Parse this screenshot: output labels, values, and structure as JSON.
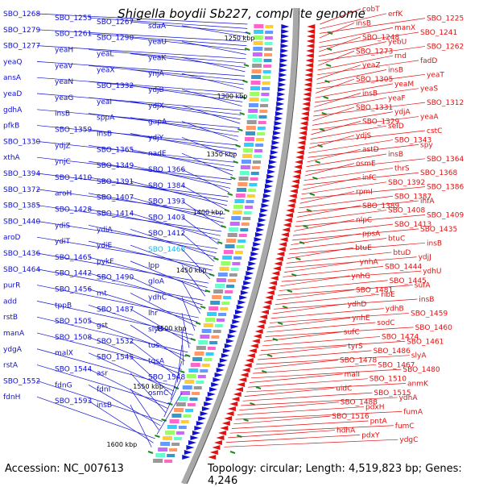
{
  "title": "Shigella boydii Sb227, complete genome",
  "footer": {
    "accession": "Accession: NC_007613",
    "topology": "Topology: circular; Length: 4,519,823 bp; Genes: 4,246"
  },
  "colors": {
    "left_strand": "#1010d0",
    "right_strand": "#e01010",
    "highlight": "#19b8e8",
    "backbone": "#a8a8a8",
    "tick": "#1f8a1f"
  },
  "ticks": [
    "1250 kbp",
    "1300 kbp",
    "1350 kbp",
    "1400 kbp",
    "1450 kbp",
    "1500 kbp",
    "1550 kbp",
    "1600 kbp"
  ],
  "left_labels": [
    "SBO_1268",
    "SBO_1255",
    "SBO_1267",
    "sdaA",
    "SBO_1279",
    "SBO_1261",
    "SBO_1290",
    "yeaU",
    "SBO_1277",
    "yeaH",
    "yeaL",
    "yeaK",
    "yeaQ",
    "yeaV",
    "yeaX",
    "ynjA",
    "ansA",
    "yeaN",
    "SBO_1332",
    "ydjB",
    "yeaD",
    "yeaG",
    "yeaI",
    "ydjX",
    "gdhA",
    "insB",
    "sppA",
    "gapA",
    "pfkB",
    "SBO_1359",
    "insB",
    "ydjY",
    "SBO_1330",
    "ydjZ",
    "SBO_1365",
    "nadE",
    "xthA",
    "ynjC",
    "SBO_1349",
    "SBO_1366",
    "SBO_1394",
    "SBO_1410",
    "SBO_1391",
    "SBO_1384",
    "SBO_1372",
    "aroH",
    "SBO_1407",
    "SBO_1393",
    "SBO_1385",
    "SBO_1428",
    "SBO_1414",
    "SBO_1403",
    "SBO_1440",
    "ydiS",
    "ydiA",
    "SBO_1412",
    "aroD",
    "ydiT",
    "ydiE",
    "SBO_1466",
    "SBO_1436",
    "SBO_1465",
    "pykF",
    "lpp",
    "SBO_1464",
    "SBO_1442",
    "SBO_1490",
    "gloA",
    "purR",
    "SBO_1456",
    "rnt",
    "ydhC",
    "add",
    "tppB",
    "SBO_1487",
    "lhr",
    "rstB",
    "SBO_1505",
    "gst",
    "slyB",
    "manA",
    "SBO_1508",
    "SBO_1532",
    "tus",
    "ydgA",
    "malX",
    "SBO_1545",
    "tqsA",
    "rstA",
    "SBO_1544",
    "asr",
    "SBO_1548",
    "SBO_1552",
    "fdnG",
    "fdnI",
    "osmC",
    "fdnH",
    "SBO_1593",
    "insB"
  ],
  "right_labels": [
    "cobT",
    "erfK",
    "SBO_1225",
    "insB",
    "manX",
    "SBO_1241",
    "SBO_1248",
    "yebU",
    "SBO_1262",
    "SBO_1273",
    "rnd",
    "fadD",
    "yeaZ",
    "insB",
    "yeaT",
    "SBO_1305",
    "yeaM",
    "yeaS",
    "insB",
    "yeaF",
    "SBO_1312",
    "SBO_1331",
    "ydjA",
    "yeaA",
    "SBO_1329",
    "selD",
    "cstC",
    "ydjS",
    "SBO_1343",
    "spy",
    "astD",
    "insB",
    "SBO_1364",
    "osmE",
    "thrS",
    "SBO_1368",
    "infC",
    "SBO_1392",
    "SBO_1386",
    "rpmI",
    "SBO_1387",
    "ihfA",
    "SBO_1389",
    "SBO_1408",
    "SBO_1409",
    "nlpC",
    "SBO_1413",
    "SBO_1435",
    "ppsA",
    "btuC",
    "insB",
    "btuE",
    "btuD",
    "ydjJ",
    "ynhA",
    "SBO_1444",
    "ydhU",
    "ynhG",
    "SBO_1445",
    "sufA",
    "SBO_1481",
    "ribE",
    "insB",
    "ydhD",
    "ydhB",
    "SBO_1459",
    "ynhE",
    "sodC",
    "SBO_1460",
    "sufC",
    "SBO_1474",
    "SBO_1461",
    "tyrS",
    "SBO_1486",
    "slyA",
    "SBO_1478",
    "SBO_1467",
    "SBO_1480",
    "malI",
    "SBO_1510",
    "anmK",
    "uidC",
    "SBO_1515",
    "ydhA",
    "SBO_1488",
    "pdxH",
    "fumA",
    "SBO_1516",
    "pntA",
    "fumC",
    "hdhA",
    "pdxY",
    "ydgC"
  ]
}
